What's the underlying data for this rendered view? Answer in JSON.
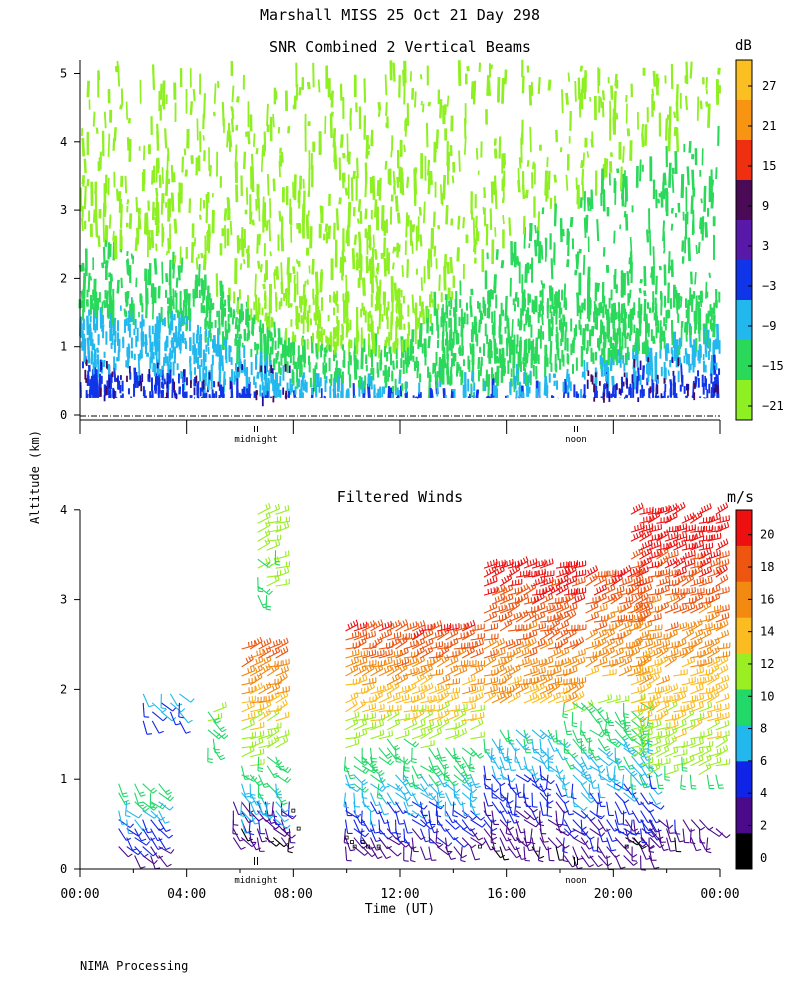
{
  "page": {
    "title": "Marshall MISS   25 Oct 21 Day 298",
    "ylabel": "Altitude (km)",
    "footer": "NIMA Processing"
  },
  "chart_data": [
    {
      "type": "heatmap",
      "title": "SNR Combined 2 Vertical Beams",
      "colorbar_unit": "dB",
      "colorbar_ticks": [
        "27",
        "21",
        "15",
        "9",
        "3",
        "−3",
        "−9",
        "−15",
        "−21"
      ],
      "colorbar_colors": [
        "#fbbf22",
        "#f79512",
        "#ee3010",
        "#4a0a55",
        "#5818a8",
        "#1034e8",
        "#22b8ee",
        "#2ad85a",
        "#8ef022"
      ],
      "yticks": [
        "0",
        "1",
        "2",
        "3",
        "4",
        "5"
      ],
      "ylim": [
        0,
        5.2
      ],
      "xlim_hours": [
        0,
        24
      ],
      "x_markers": [
        {
          "label": "midnight",
          "hour": 6.6
        },
        {
          "label": "noon",
          "hour": 18.6
        }
      ],
      "data_range_km": [
        0.25,
        5.2
      ],
      "layers": [
        {
          "name": "green",
          "color": "#8ef022",
          "top_km": [
            5.2,
            5.2,
            5.2,
            5.2,
            5.2,
            5.2,
            5.2
          ]
        },
        {
          "name": "mid-green",
          "color": "#2ad85a",
          "top_km": [
            2.6,
            2.2,
            1.1,
            1.0,
            2.6,
            3.5,
            4.2
          ]
        },
        {
          "name": "cyan",
          "color": "#22b8ee",
          "top_km": [
            1.6,
            1.4,
            0.6,
            0.5,
            0.5,
            0.9,
            1.2
          ]
        },
        {
          "name": "blue",
          "color": "#1034e8",
          "top_km": [
            0.8,
            0.6,
            0.3,
            0.35,
            0.3,
            0.5,
            0.7
          ]
        }
      ],
      "layer_hours": [
        0,
        4,
        8,
        12,
        16,
        20,
        24
      ]
    },
    {
      "type": "scatter",
      "subtype": "wind_barbs",
      "title": "Filtered Winds",
      "colorbar_unit": "m/s",
      "colorbar_ticks": [
        "20",
        "18",
        "16",
        "14",
        "12",
        "10",
        "8",
        "6",
        "4",
        "2",
        "0"
      ],
      "colorbar_colors": [
        "#ee1010",
        "#ee5510",
        "#f28a12",
        "#fbbc22",
        "#9aee22",
        "#22d868",
        "#22b8ee",
        "#1024e8",
        "#4a0a8a",
        "#000000"
      ],
      "xticks": [
        "00:00",
        "04:00",
        "08:00",
        "12:00",
        "16:00",
        "20:00",
        "00:00"
      ],
      "yticks": [
        "0",
        "1",
        "2",
        "3",
        "4"
      ],
      "xlabel": "Time (UT)",
      "xlim_hours": [
        0,
        24
      ],
      "ylim": [
        0,
        4
      ],
      "x_markers": [
        {
          "label": "midnight",
          "hour": 6.6
        },
        {
          "label": "noon",
          "hour": 18.6
        }
      ],
      "wind_groups": [
        {
          "hours": [
            1.3,
            3.1
          ],
          "alt_km": [
            0.1,
            1.0
          ],
          "speed": [
            3,
            9
          ]
        },
        {
          "hours": [
            2.2,
            3.9
          ],
          "alt_km": [
            1.6,
            2.0
          ],
          "speed": [
            5,
            7
          ]
        },
        {
          "hours": [
            4.7,
            5.1
          ],
          "alt_km": [
            1.3,
            1.8
          ],
          "speed": [
            9,
            10
          ]
        },
        {
          "hours": [
            5.6,
            8.0
          ],
          "alt_km": [
            0.3,
            0.8
          ],
          "speed": [
            2,
            4
          ]
        },
        {
          "hours": [
            5.9,
            7.5
          ],
          "alt_km": [
            0.5,
            2.5
          ],
          "speed": [
            6,
            17
          ]
        },
        {
          "hours": [
            6.5,
            7.5
          ],
          "alt_km": [
            3.0,
            4.0
          ],
          "speed": [
            10,
            11
          ]
        },
        {
          "hours": [
            9.8,
            14.8
          ],
          "alt_km": [
            0.2,
            2.7
          ],
          "speed": [
            3,
            18
          ]
        },
        {
          "hours": [
            15.0,
            18.0
          ],
          "alt_km": [
            0.2,
            1.6
          ],
          "speed": [
            2,
            8
          ]
        },
        {
          "hours": [
            15.0,
            18.6
          ],
          "alt_km": [
            1.8,
            3.4
          ],
          "speed": [
            14,
            19
          ]
        },
        {
          "hours": [
            18.0,
            21.5
          ],
          "alt_km": [
            0.1,
            1.9
          ],
          "speed": [
            3,
            10
          ]
        },
        {
          "hours": [
            18.8,
            21.0
          ],
          "alt_km": [
            2.1,
            3.3
          ],
          "speed": [
            14,
            18
          ]
        },
        {
          "hours": [
            20.3,
            24.0
          ],
          "alt_km": [
            0.3,
            0.6
          ],
          "speed": [
            2,
            4
          ]
        },
        {
          "hours": [
            20.5,
            24.0
          ],
          "alt_km": [
            1.0,
            4.0
          ],
          "speed": [
            10,
            20
          ]
        }
      ]
    }
  ]
}
